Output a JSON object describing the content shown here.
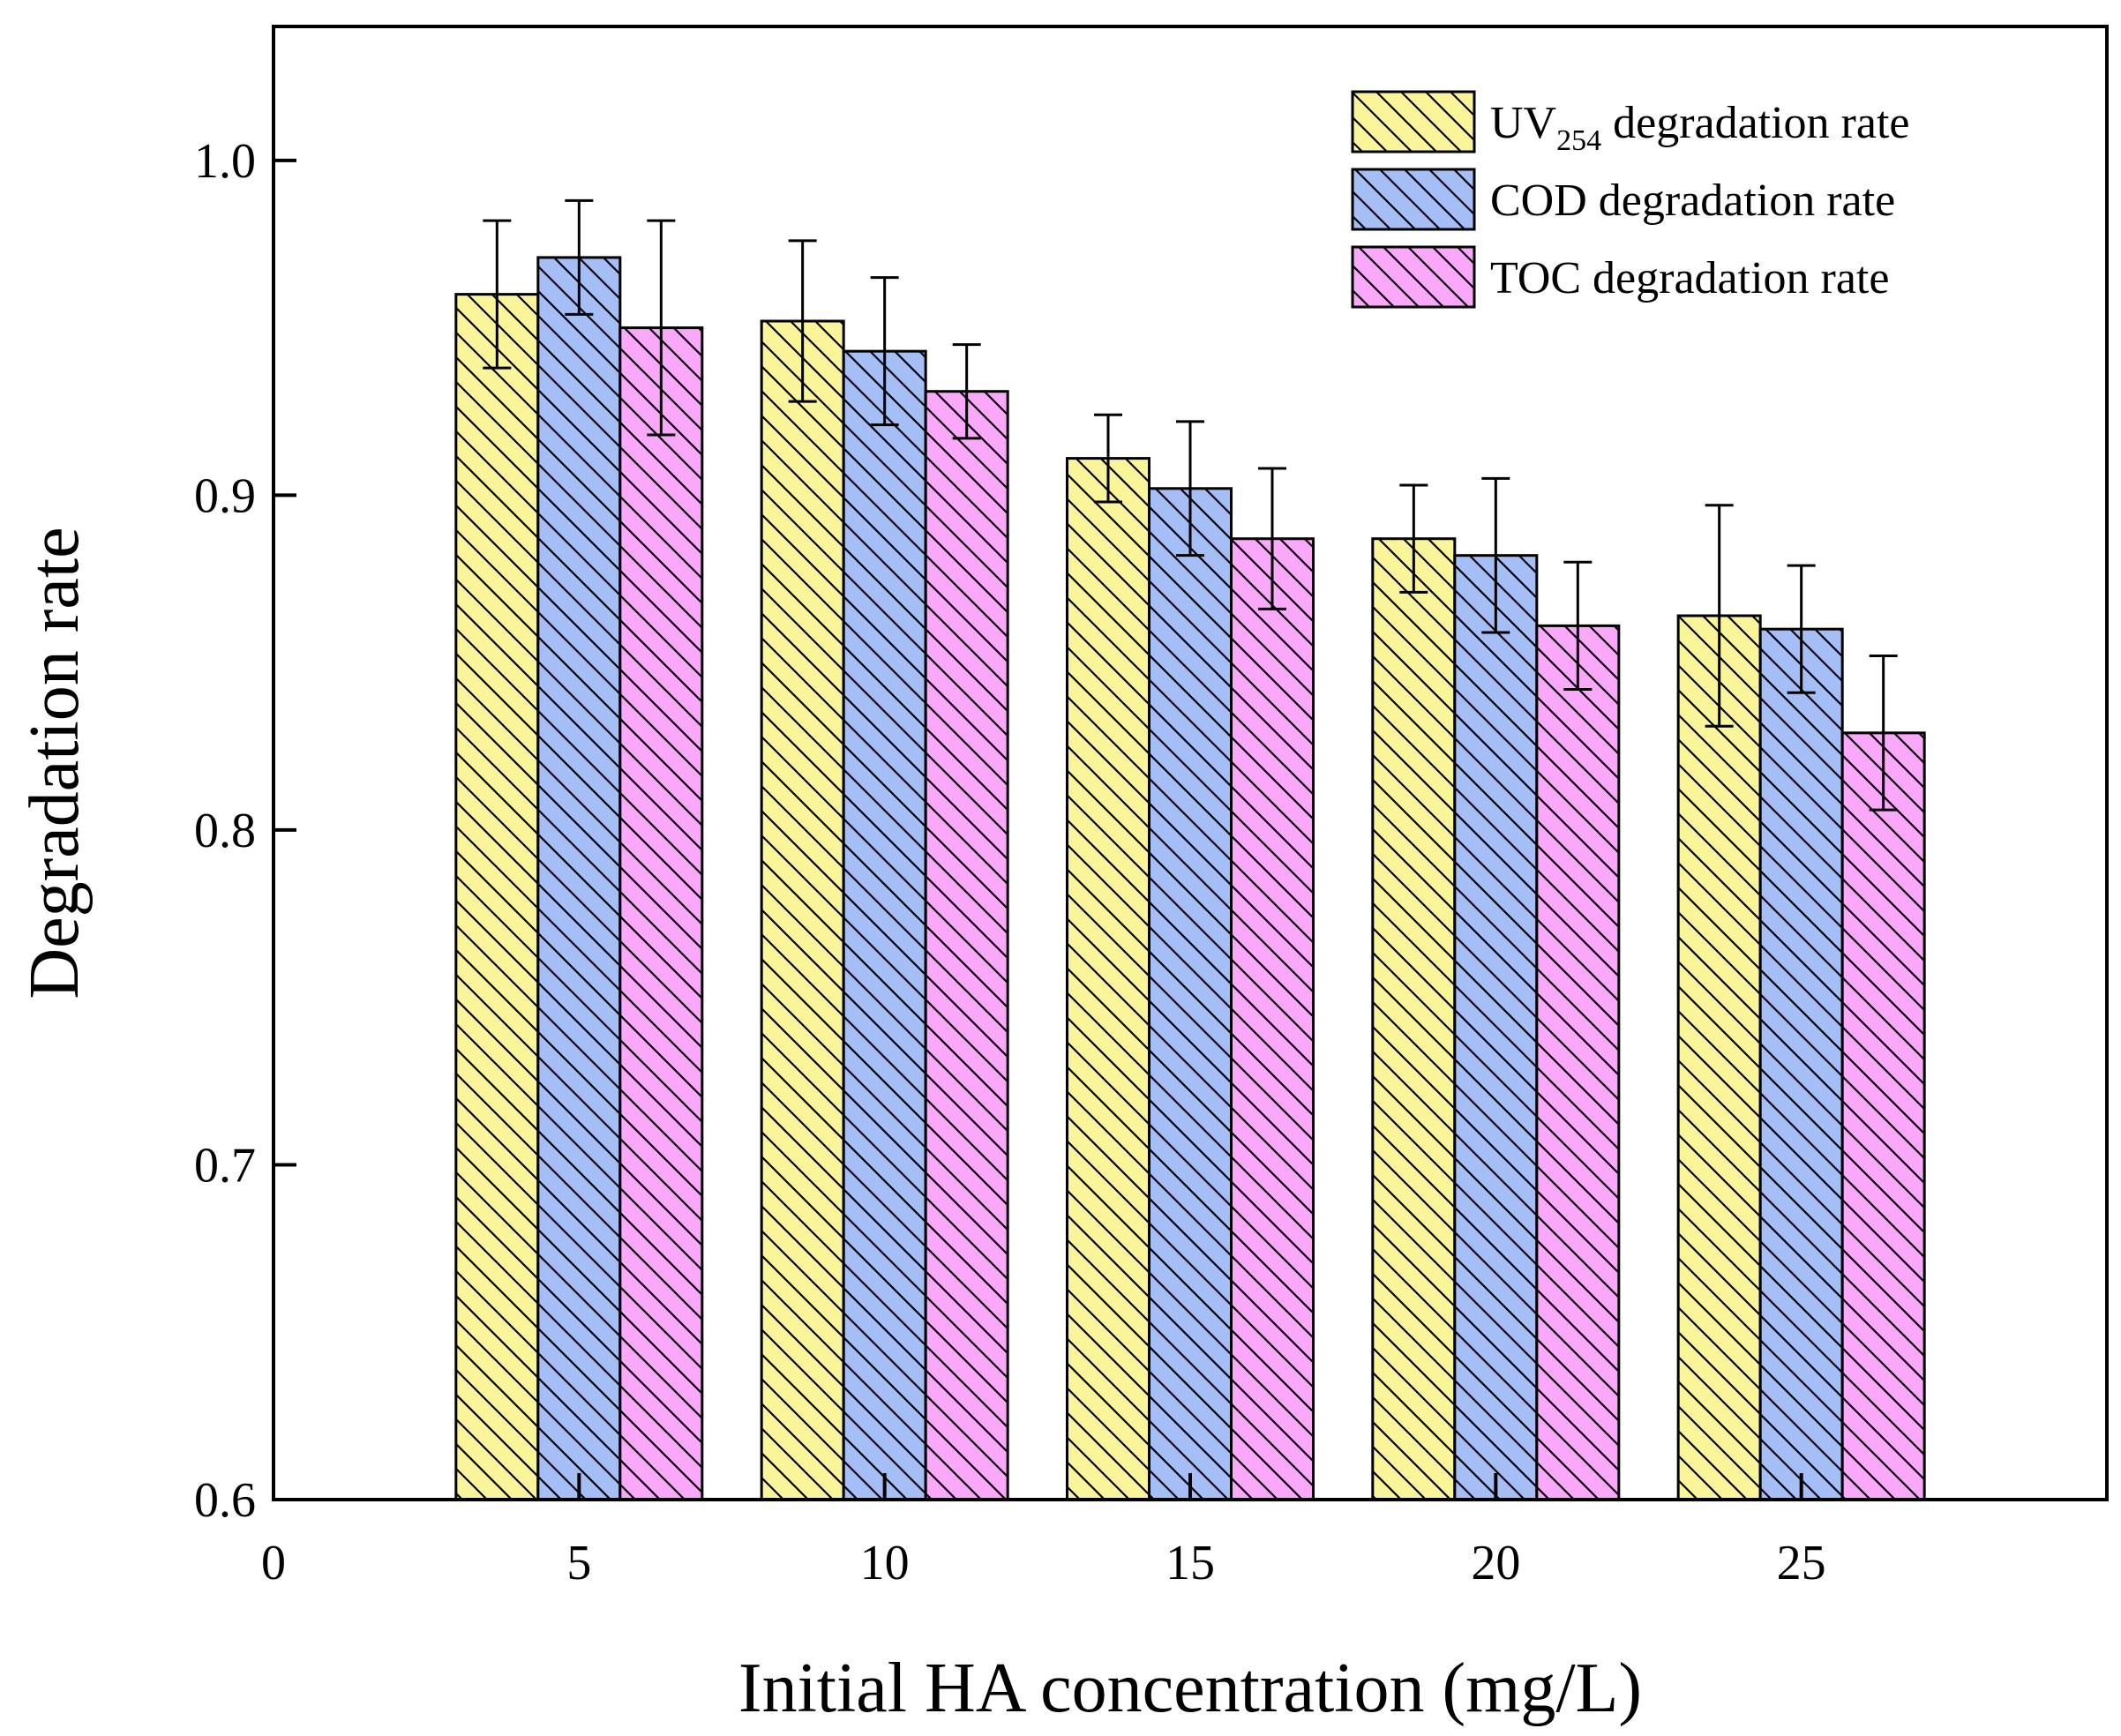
{
  "chart_data": {
    "type": "bar",
    "title": "",
    "xlabel": "Initial HA concentration (mg/L)",
    "ylabel": "Degradation rate",
    "x_ticks": [
      0,
      5,
      10,
      15,
      20,
      25
    ],
    "x_tick_labels": [
      "0",
      "5",
      "10",
      "15",
      "20",
      "25"
    ],
    "xlim": [
      0,
      30
    ],
    "y_ticks": [
      0.6,
      0.7,
      0.8,
      0.9,
      1.0
    ],
    "y_tick_labels": [
      "0.6",
      "0.7",
      "0.8",
      "0.9",
      "1.0"
    ],
    "ylim": [
      0.6,
      1.04
    ],
    "categories": [
      5,
      10,
      15,
      20,
      25
    ],
    "legend_position": "top-right",
    "grid": false,
    "series": [
      {
        "name": "UV254 degradation rate",
        "legend_main": "UV",
        "legend_sub": "254",
        "legend_rest": " degradation rate",
        "color": "#FAF59B",
        "values": [
          0.96,
          0.952,
          0.911,
          0.887,
          0.864
        ],
        "errors": [
          0.022,
          0.024,
          0.013,
          0.016,
          0.033
        ]
      },
      {
        "name": "COD degradation rate",
        "legend_main": "COD degradation rate",
        "legend_sub": "",
        "legend_rest": "",
        "color": "#A5BEF5",
        "values": [
          0.971,
          0.943,
          0.902,
          0.882,
          0.86
        ],
        "errors": [
          0.017,
          0.022,
          0.02,
          0.023,
          0.019
        ]
      },
      {
        "name": "TOC degradation rate",
        "legend_main": "TOC degradation rate",
        "legend_sub": "",
        "legend_rest": "",
        "color": "#FAA8FA",
        "values": [
          0.95,
          0.931,
          0.887,
          0.861,
          0.829
        ],
        "errors": [
          0.032,
          0.014,
          0.021,
          0.019,
          0.023
        ]
      }
    ]
  }
}
